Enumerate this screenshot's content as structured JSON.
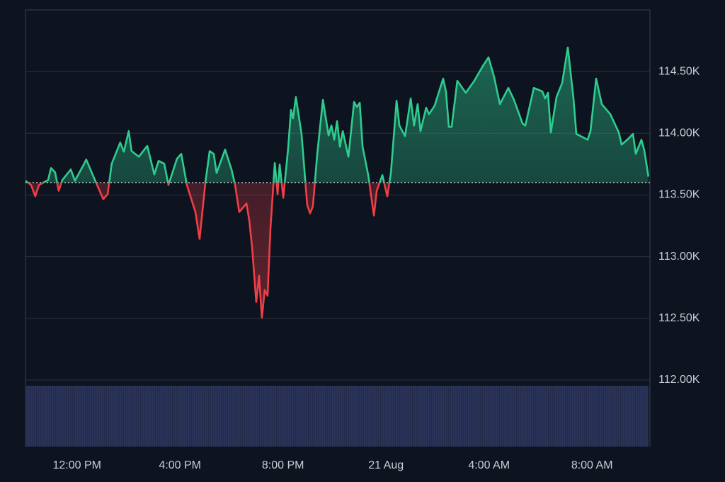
{
  "chart_data": {
    "type": "baseline",
    "x": [
      10.0,
      10.22,
      10.38,
      10.52,
      10.88,
      10.99,
      11.15,
      11.29,
      11.43,
      11.76,
      11.92,
      12.25,
      12.36,
      12.64,
      13.02,
      13.19,
      13.35,
      13.68,
      13.82,
      14.01,
      14.12,
      14.4,
      14.73,
      15.0,
      15.17,
      15.39,
      15.55,
      15.88,
      16.05,
      16.27,
      16.6,
      16.76,
      16.98,
      17.15,
      17.31,
      17.42,
      17.75,
      18.0,
      18.14,
      18.3,
      18.58,
      18.69,
      18.8,
      18.91,
      18.96,
      19.07,
      19.18,
      19.29,
      19.4,
      19.51,
      19.68,
      19.79,
      19.87,
      20.01,
      20.2,
      20.31,
      20.39,
      20.5,
      20.72,
      20.94,
      21.05,
      21.16,
      21.33,
      21.55,
      21.77,
      21.88,
      21.99,
      22.1,
      22.21,
      22.32,
      22.54,
      22.76,
      22.87,
      22.98,
      23.09,
      23.31,
      23.53,
      23.64,
      23.86,
      24.05,
      24.19,
      24.41,
      24.52,
      24.74,
      24.96,
      25.09,
      25.23,
      25.34,
      25.56,
      25.67,
      25.89,
      26.22,
      26.33,
      26.44,
      26.55,
      26.77,
      27.1,
      27.43,
      27.76,
      27.98,
      28.2,
      28.42,
      28.75,
      28.97,
      29.3,
      29.41,
      29.74,
      30.07,
      30.18,
      30.29,
      30.4,
      30.62,
      30.84,
      31.06,
      31.28,
      31.39,
      31.61,
      31.83,
      31.94,
      32.16,
      32.38,
      32.71,
      33.04,
      33.15,
      33.37,
      33.59,
      33.7,
      33.92,
      34.03,
      34.19
    ],
    "series": [
      {
        "values": [
          113615,
          113580,
          113489,
          113580,
          113621,
          113718,
          113684,
          113534,
          113621,
          113707,
          113615,
          113741,
          113787,
          113649,
          113466,
          113506,
          113753,
          113925,
          113851,
          114017,
          113856,
          113810,
          113897,
          113667,
          113776,
          113753,
          113580,
          113793,
          113833,
          113580,
          113362,
          113144,
          113592,
          113856,
          113833,
          113678,
          113868,
          113707,
          113580,
          113362,
          113431,
          113293,
          113075,
          112770,
          112632,
          112845,
          112506,
          112730,
          112684,
          113218,
          113759,
          113506,
          113747,
          113477,
          113879,
          114190,
          114121,
          114293,
          113994,
          113420,
          113351,
          113408,
          113833,
          114270,
          113983,
          114063,
          113948,
          114098,
          113891,
          114017,
          113810,
          114253,
          114213,
          114247,
          113891,
          113661,
          113333,
          113534,
          113661,
          113489,
          113678,
          114264,
          114063,
          113977,
          114282,
          114063,
          114236,
          114017,
          114207,
          114155,
          114224,
          114443,
          114339,
          114052,
          114052,
          114425,
          114328,
          114425,
          114546,
          114615,
          114454,
          114236,
          114368,
          114270,
          114080,
          114063,
          114368,
          114339,
          114282,
          114328,
          114006,
          114293,
          114408,
          114695,
          114282,
          113994,
          113971,
          113948,
          114017,
          114443,
          114236,
          114155,
          114006,
          113908,
          113948,
          113994,
          113833,
          113948,
          113862,
          113649
        ]
      }
    ],
    "baseline": 113600,
    "colors": {
      "up": "#2ecc8e",
      "down": "#ef3f45"
    },
    "xlim": [
      10,
      34.25
    ],
    "xticks": [
      {
        "value": 12,
        "label": "12:00 PM"
      },
      {
        "value": 16,
        "label": "4:00 PM"
      },
      {
        "value": 20,
        "label": "8:00 PM"
      },
      {
        "value": 24,
        "label": "21 Aug"
      },
      {
        "value": 28,
        "label": "4:00 AM"
      },
      {
        "value": 32,
        "label": "8:00 AM"
      }
    ],
    "ylim": [
      111460,
      115000
    ],
    "yticks": [
      {
        "value": 112000,
        "label": "112.00K"
      },
      {
        "value": 112500,
        "label": "112.50K"
      },
      {
        "value": 113000,
        "label": "113.00K"
      },
      {
        "value": 113500,
        "label": "113.50K"
      },
      {
        "value": 114000,
        "label": "114.00K"
      },
      {
        "value": 114500,
        "label": "114.50K"
      }
    ],
    "grid": true
  }
}
